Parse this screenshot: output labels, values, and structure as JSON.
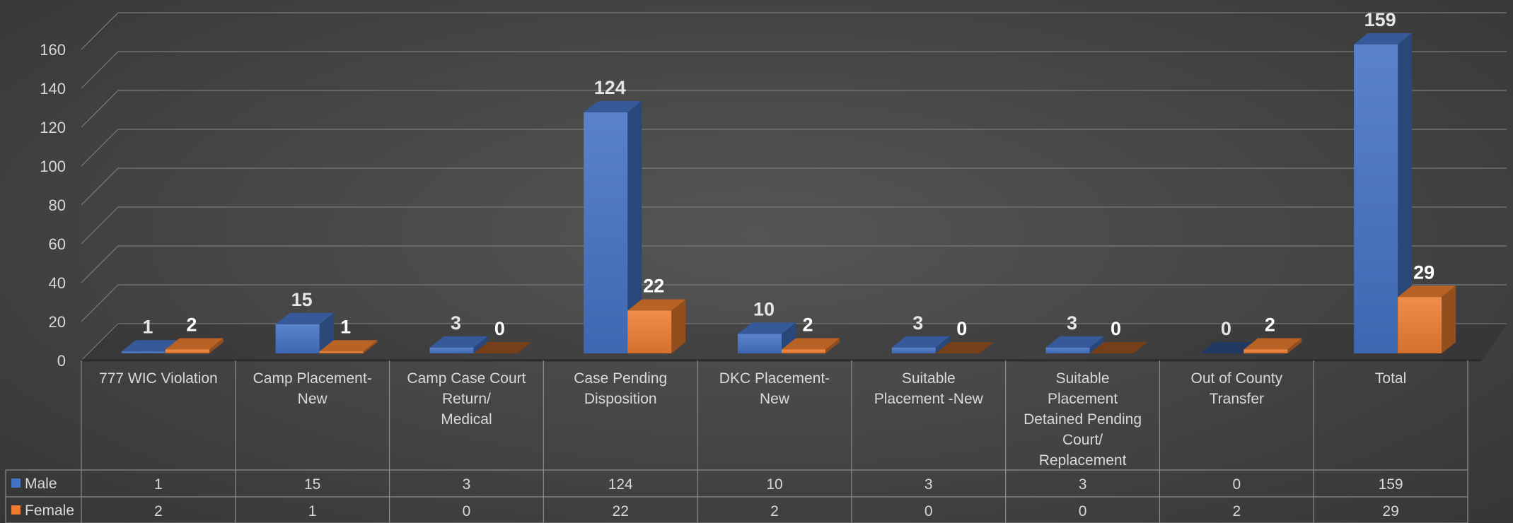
{
  "chart_data": {
    "type": "bar",
    "title": "",
    "xlabel": "",
    "ylabel": "",
    "ylim": [
      0,
      160
    ],
    "yticks": [
      0,
      20,
      40,
      60,
      80,
      100,
      120,
      140,
      160
    ],
    "grid": true,
    "three_d": true,
    "legend_placement": "data-table",
    "categories": [
      [
        "777 WIC Violation"
      ],
      [
        "Camp Placement-",
        "New"
      ],
      [
        "Camp Case Court",
        "Return/",
        "Medical"
      ],
      [
        "Case Pending",
        "Disposition"
      ],
      [
        "DKC Placement-",
        "New"
      ],
      [
        "Suitable",
        "Placement -New"
      ],
      [
        "Suitable",
        "Placement",
        "Detained Pending",
        "Court/",
        "Replacement"
      ],
      [
        "Out of County",
        "Transfer"
      ],
      [
        "Total"
      ]
    ],
    "series": [
      {
        "name": "Male",
        "color": "#4472c4",
        "values": [
          1,
          15,
          3,
          124,
          10,
          3,
          3,
          0,
          159
        ]
      },
      {
        "name": "Female",
        "color": "#ed7d31",
        "values": [
          2,
          1,
          0,
          22,
          2,
          0,
          0,
          2,
          29
        ]
      }
    ]
  }
}
